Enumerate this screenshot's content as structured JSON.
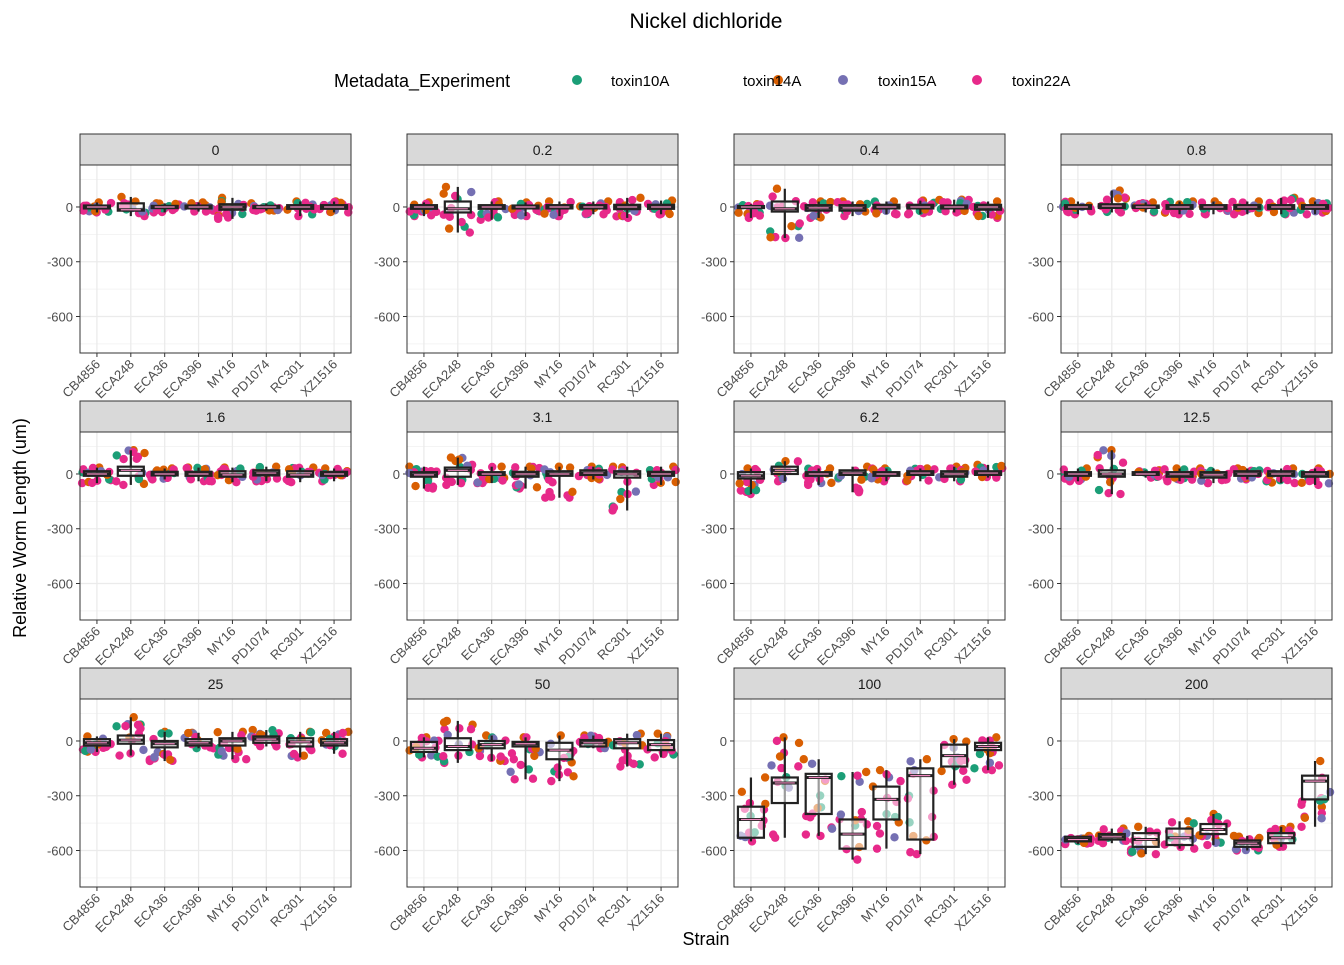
{
  "chart_data": {
    "type": "boxplot",
    "title": "Nickel dichloride",
    "xlabel": "Strain",
    "ylabel": "Relative Worm Length (um)",
    "ylim": [
      -800,
      230
    ],
    "yticks": [
      0,
      -300,
      -600
    ],
    "ytick_labels": [
      "0",
      "-300",
      "-600"
    ],
    "grid": true,
    "legend": {
      "title": "Metadata_Experiment",
      "position": "top",
      "entries": [
        {
          "name": "toxin10A",
          "color": "#1b9e77"
        },
        {
          "name": "toxin14A",
          "color": "#d95f02"
        },
        {
          "name": "toxin15A",
          "color": "#7570b3"
        },
        {
          "name": "toxin22A",
          "color": "#e7298a"
        }
      ]
    },
    "categories": [
      "CB4856",
      "ECA248",
      "ECA36",
      "ECA396",
      "MY16",
      "PD1074",
      "RC301",
      "XZ1516"
    ],
    "panels": [
      {
        "label": "0",
        "boxes": [
          [
            -8,
            8,
            0,
            -30,
            25
          ],
          [
            -20,
            20,
            -15,
            -50,
            55
          ],
          [
            -6,
            6,
            0,
            -30,
            20
          ],
          [
            -8,
            8,
            0,
            -25,
            25
          ],
          [
            -15,
            15,
            0,
            -65,
            50
          ],
          [
            -6,
            6,
            0,
            -20,
            20
          ],
          [
            -10,
            10,
            0,
            -50,
            30
          ],
          [
            -10,
            10,
            0,
            -30,
            30
          ]
        ]
      },
      {
        "label": "0.2",
        "boxes": [
          [
            -10,
            10,
            0,
            -50,
            25
          ],
          [
            -30,
            30,
            -10,
            -140,
            110
          ],
          [
            -10,
            10,
            0,
            -70,
            30
          ],
          [
            -8,
            8,
            0,
            -50,
            25
          ],
          [
            -8,
            10,
            0,
            -50,
            30
          ],
          [
            -8,
            10,
            0,
            -40,
            30
          ],
          [
            -12,
            12,
            0,
            -60,
            50
          ],
          [
            -10,
            12,
            0,
            -40,
            35
          ]
        ]
      },
      {
        "label": "0.4",
        "boxes": [
          [
            -5,
            5,
            0,
            -60,
            15
          ],
          [
            -25,
            30,
            -10,
            -170,
            100
          ],
          [
            -20,
            10,
            -5,
            -60,
            30
          ],
          [
            -20,
            10,
            -5,
            -50,
            30
          ],
          [
            -8,
            12,
            0,
            -40,
            30
          ],
          [
            -8,
            12,
            0,
            -40,
            35
          ],
          [
            -8,
            8,
            0,
            -30,
            40
          ],
          [
            -15,
            12,
            0,
            -60,
            30
          ]
        ]
      },
      {
        "label": "0.8",
        "boxes": [
          [
            -10,
            10,
            0,
            -40,
            30
          ],
          [
            -5,
            15,
            5,
            -30,
            90
          ],
          [
            -5,
            8,
            0,
            -30,
            25
          ],
          [
            -10,
            10,
            0,
            -40,
            30
          ],
          [
            -10,
            10,
            0,
            -40,
            30
          ],
          [
            -10,
            10,
            0,
            -40,
            30
          ],
          [
            -10,
            10,
            0,
            -40,
            50
          ],
          [
            -10,
            10,
            0,
            -40,
            30
          ]
        ]
      },
      {
        "label": "1.6",
        "boxes": [
          [
            -10,
            15,
            0,
            -50,
            35
          ],
          [
            -10,
            40,
            20,
            -60,
            130
          ],
          [
            -8,
            12,
            0,
            -30,
            30
          ],
          [
            -10,
            12,
            0,
            -40,
            35
          ],
          [
            -15,
            15,
            -5,
            -45,
            35
          ],
          [
            -8,
            20,
            5,
            -40,
            40
          ],
          [
            -15,
            15,
            -5,
            -45,
            35
          ],
          [
            -10,
            12,
            0,
            -40,
            30
          ]
        ]
      },
      {
        "label": "3.1",
        "boxes": [
          [
            -15,
            10,
            -5,
            -80,
            40
          ],
          [
            -15,
            35,
            20,
            -60,
            90
          ],
          [
            -5,
            10,
            0,
            -50,
            40
          ],
          [
            -15,
            12,
            0,
            -80,
            40
          ],
          [
            -10,
            15,
            0,
            -130,
            40
          ],
          [
            -5,
            20,
            5,
            -30,
            40
          ],
          [
            -20,
            15,
            0,
            -200,
            40
          ],
          [
            -10,
            12,
            0,
            -60,
            40
          ]
        ]
      },
      {
        "label": "6.2",
        "boxes": [
          [
            -25,
            10,
            -10,
            -110,
            30
          ],
          [
            0,
            40,
            20,
            -40,
            70
          ],
          [
            -10,
            10,
            0,
            -60,
            30
          ],
          [
            -5,
            20,
            5,
            -100,
            40
          ],
          [
            -10,
            10,
            0,
            -40,
            30
          ],
          [
            -5,
            15,
            5,
            -40,
            30
          ],
          [
            -15,
            15,
            0,
            -40,
            40
          ],
          [
            -5,
            15,
            5,
            -20,
            50
          ]
        ]
      },
      {
        "label": "12.5",
        "boxes": [
          [
            -10,
            10,
            0,
            -40,
            30
          ],
          [
            -15,
            20,
            0,
            -110,
            130
          ],
          [
            -5,
            10,
            0,
            -20,
            20
          ],
          [
            -15,
            10,
            0,
            -40,
            30
          ],
          [
            -20,
            10,
            -5,
            -50,
            30
          ],
          [
            -10,
            15,
            0,
            -30,
            30
          ],
          [
            -10,
            15,
            0,
            -50,
            30
          ],
          [
            -15,
            10,
            0,
            -60,
            30
          ]
        ]
      },
      {
        "label": "25",
        "boxes": [
          [
            -25,
            10,
            -10,
            -60,
            25
          ],
          [
            -15,
            30,
            5,
            -80,
            130
          ],
          [
            -35,
            0,
            -15,
            -110,
            50
          ],
          [
            -25,
            10,
            -10,
            -40,
            45
          ],
          [
            -25,
            15,
            0,
            -100,
            50
          ],
          [
            -10,
            25,
            10,
            -30,
            60
          ],
          [
            -30,
            15,
            -5,
            -90,
            50
          ],
          [
            -25,
            10,
            -10,
            -70,
            50
          ]
        ]
      },
      {
        "label": "50",
        "boxes": [
          [
            -60,
            -5,
            -40,
            -90,
            20
          ],
          [
            -50,
            15,
            -30,
            -120,
            110
          ],
          [
            -40,
            0,
            -20,
            -110,
            30
          ],
          [
            -30,
            -5,
            -15,
            -210,
            20
          ],
          [
            -100,
            -10,
            -50,
            -220,
            30
          ],
          [
            -30,
            5,
            -10,
            -40,
            30
          ],
          [
            -40,
            10,
            -10,
            -140,
            40
          ],
          [
            -50,
            5,
            -20,
            -90,
            40
          ]
        ]
      },
      {
        "label": "100",
        "boxes": [
          [
            -530,
            -360,
            -430,
            -550,
            -200
          ],
          [
            -340,
            -200,
            -230,
            -530,
            20
          ],
          [
            -400,
            -180,
            -200,
            -520,
            -100
          ],
          [
            -590,
            -430,
            -510,
            -650,
            -170
          ],
          [
            -430,
            -250,
            -320,
            -590,
            -160
          ],
          [
            -540,
            -150,
            -190,
            -620,
            -100
          ],
          [
            -140,
            -20,
            -80,
            -240,
            10
          ],
          [
            -50,
            -10,
            -30,
            -160,
            20
          ]
        ]
      },
      {
        "label": "200",
        "boxes": [
          [
            -550,
            -525,
            -540,
            -565,
            -520
          ],
          [
            -540,
            -510,
            -525,
            -560,
            -480
          ],
          [
            -580,
            -505,
            -540,
            -620,
            -470
          ],
          [
            -570,
            -480,
            -530,
            -590,
            -440
          ],
          [
            -510,
            -455,
            -485,
            -570,
            -400
          ],
          [
            -580,
            -545,
            -560,
            -600,
            -520
          ],
          [
            -560,
            -505,
            -530,
            -580,
            -470
          ],
          [
            -320,
            -190,
            -220,
            -470,
            -110
          ]
        ]
      }
    ]
  }
}
